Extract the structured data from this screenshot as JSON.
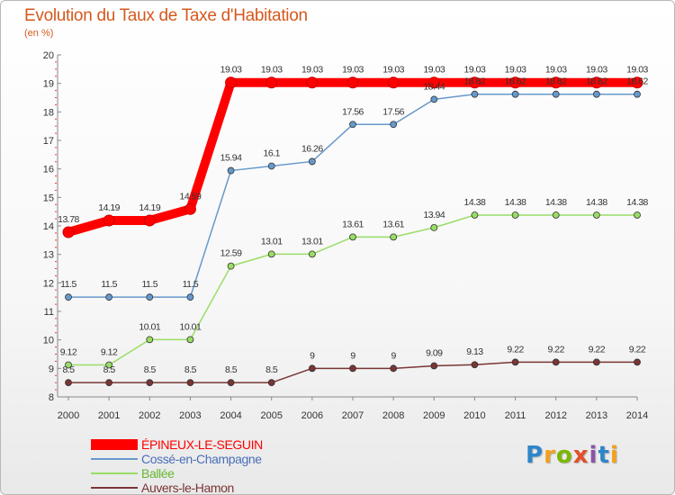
{
  "title": "Evolution du Taux de Taxe d'Habitation",
  "subtitle": "(en %)",
  "logo": {
    "text": "Proxiti",
    "colors": [
      "#2e86c8",
      "#f2a01e",
      "#7ab800",
      "#e2502a",
      "#8a55a8",
      "#2e86c8",
      "#f2a01e"
    ]
  },
  "chart_data": {
    "type": "line",
    "categories": [
      "2000",
      "2001",
      "2002",
      "2003",
      "2004",
      "2005",
      "2006",
      "2007",
      "2008",
      "2009",
      "2010",
      "2011",
      "2012",
      "2013",
      "2014"
    ],
    "ylim": [
      8,
      20
    ],
    "yticks": [
      "8",
      "9",
      "10",
      "11",
      "12",
      "13",
      "14",
      "15",
      "16",
      "17",
      "18",
      "19",
      "20"
    ],
    "grid": false,
    "legend_position": "bottom-left",
    "series": [
      {
        "name": "ÉPINEUX-LE-SEGUIN",
        "color": "#ff0000",
        "values": [
          13.78,
          14.19,
          14.19,
          14.59,
          19.03,
          19.03,
          19.03,
          19.03,
          19.03,
          19.03,
          19.03,
          19.03,
          19.03,
          19.03,
          19.03
        ],
        "labels": [
          "13.78",
          "14.19",
          "14.19",
          "14.59",
          "19.03",
          "19.03",
          "19.03",
          "19.03",
          "19.03",
          "19.03",
          "19.03",
          "19.03",
          "19.03",
          "19.03",
          "19.03"
        ]
      },
      {
        "name": "Cossé-en-Champagne",
        "color": "#6699cc",
        "values": [
          11.5,
          11.5,
          11.5,
          11.5,
          15.94,
          16.1,
          16.26,
          17.56,
          17.56,
          18.44,
          18.62,
          18.62,
          18.62,
          18.62,
          18.62
        ],
        "labels": [
          "11.5",
          "11.5",
          "11.5",
          "11.5",
          "15.94",
          "16.1",
          "16.26",
          "17.56",
          "17.56",
          "18.44",
          "18.62",
          "18.62",
          "18.62",
          "18.62",
          "18.62"
        ]
      },
      {
        "name": "Ballée",
        "color": "#99dd66",
        "values": [
          9.12,
          9.12,
          10.01,
          10.01,
          12.59,
          13.01,
          13.01,
          13.61,
          13.61,
          13.94,
          14.38,
          14.38,
          14.38,
          14.38,
          14.38
        ],
        "labels": [
          "9.12",
          "9.12",
          "10.01",
          "10.01",
          "12.59",
          "13.01",
          "13.01",
          "13.61",
          "13.61",
          "13.94",
          "14.38",
          "14.38",
          "14.38",
          "14.38",
          "14.38"
        ]
      },
      {
        "name": "Auvers-le-Hamon",
        "color": "#7a3535",
        "values": [
          8.5,
          8.5,
          8.5,
          8.5,
          8.5,
          8.5,
          9,
          9,
          9,
          9.09,
          9.13,
          9.22,
          9.22,
          9.22,
          9.22
        ],
        "labels": [
          "8.5",
          "8.5",
          "8.5",
          "8.5",
          "8.5",
          "8.5",
          "9",
          "9",
          "9",
          "9.09",
          "9.13",
          "9.22",
          "9.22",
          "9.22",
          "9.22"
        ]
      }
    ]
  }
}
